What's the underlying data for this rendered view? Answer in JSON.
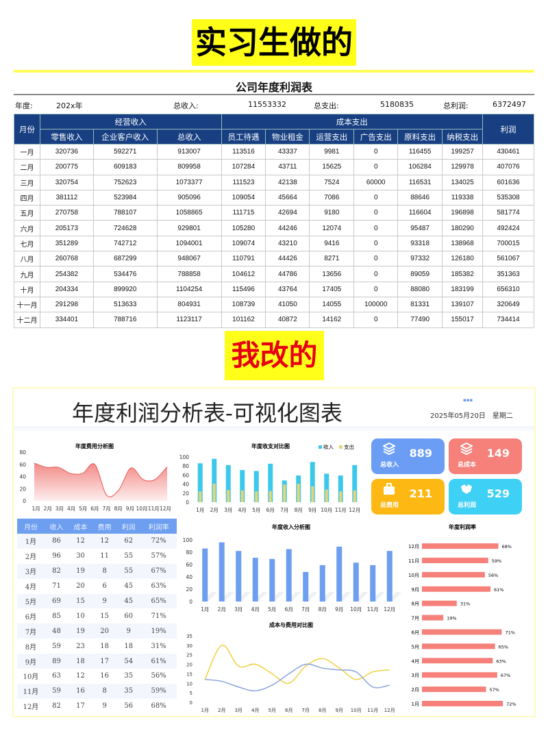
{
  "top_label": "实习生做的",
  "bottom_label": "我改的",
  "original": {
    "title": "公司年度利润表",
    "summary": {
      "year_label": "年度:",
      "year": "202x年",
      "income_label": "总收入:",
      "income": "11553332",
      "expense_label": "总支出:",
      "expense": "5180835",
      "profit_label": "总利润:",
      "profit": "6372497"
    },
    "group_headers": {
      "month": "月份",
      "operating": "经营收入",
      "cost": "成本支出",
      "profit": "利润"
    },
    "columns": [
      "零售收入",
      "企业客户收入",
      "总收入",
      "员工待遇",
      "物业租金",
      "运营支出",
      "广告支出",
      "原料支出",
      "纳税支出"
    ],
    "rows": [
      [
        "一月",
        "320736",
        "592271",
        "913007",
        "113516",
        "43337",
        "9981",
        "0",
        "116455",
        "199257",
        "430461"
      ],
      [
        "二月",
        "200775",
        "609183",
        "809958",
        "107284",
        "43711",
        "15625",
        "0",
        "106284",
        "129978",
        "407076"
      ],
      [
        "三月",
        "320754",
        "752623",
        "1073377",
        "111523",
        "42138",
        "7524",
        "60000",
        "116531",
        "134025",
        "601636"
      ],
      [
        "四月",
        "381112",
        "523984",
        "905096",
        "109054",
        "45664",
        "7086",
        "0",
        "88646",
        "119338",
        "535308"
      ],
      [
        "五月",
        "270758",
        "788107",
        "1058865",
        "111715",
        "42694",
        "9180",
        "0",
        "116604",
        "196898",
        "581774"
      ],
      [
        "六月",
        "205173",
        "724628",
        "929801",
        "105280",
        "44246",
        "12074",
        "0",
        "95487",
        "180290",
        "492424"
      ],
      [
        "七月",
        "351289",
        "742712",
        "1094001",
        "109074",
        "43210",
        "9416",
        "0",
        "93318",
        "138968",
        "700015"
      ],
      [
        "八月",
        "260768",
        "687299",
        "948067",
        "110791",
        "44426",
        "8271",
        "0",
        "97332",
        "126180",
        "561067"
      ],
      [
        "九月",
        "254382",
        "534476",
        "788858",
        "104612",
        "44786",
        "13656",
        "0",
        "89059",
        "185382",
        "351363"
      ],
      [
        "十月",
        "204334",
        "899920",
        "1104254",
        "115496",
        "43764",
        "17405",
        "0",
        "88080",
        "183199",
        "656310"
      ],
      [
        "十一月",
        "291298",
        "513633",
        "804931",
        "108739",
        "41050",
        "14055",
        "100000",
        "81331",
        "139107",
        "320649"
      ],
      [
        "十二月",
        "334401",
        "788716",
        "1123117",
        "101162",
        "40872",
        "14162",
        "0",
        "77490",
        "155017",
        "734414"
      ]
    ]
  },
  "dashboard": {
    "title": "年度利润分析表-可视化图表",
    "dots": "▪▪▪",
    "date": "2025年05月20日　星期二",
    "cards": [
      {
        "label": "总收入",
        "value": "889",
        "color": "#6b9df5",
        "icon": "stack-icon"
      },
      {
        "label": "总成本",
        "value": "149",
        "color": "#f6807a",
        "icon": "stack-icon"
      },
      {
        "label": "总费用",
        "value": "211",
        "color": "#fdb813",
        "icon": "briefcase-icon"
      },
      {
        "label": "总利润",
        "value": "529",
        "color": "#3fd0f5",
        "icon": "handshake-icon"
      }
    ],
    "table": {
      "headers": [
        "月份",
        "收入",
        "成本",
        "费用",
        "利润",
        "利润率"
      ],
      "rows": [
        [
          "1月",
          "86",
          "12",
          "12",
          "62",
          "72%"
        ],
        [
          "2月",
          "96",
          "30",
          "11",
          "55",
          "57%"
        ],
        [
          "3月",
          "82",
          "19",
          "8",
          "55",
          "67%"
        ],
        [
          "4月",
          "71",
          "20",
          "6",
          "45",
          "63%"
        ],
        [
          "5月",
          "69",
          "15",
          "9",
          "45",
          "65%"
        ],
        [
          "6月",
          "85",
          "10",
          "15",
          "60",
          "71%"
        ],
        [
          "7月",
          "48",
          "19",
          "20",
          "9",
          "19%"
        ],
        [
          "8月",
          "59",
          "23",
          "18",
          "18",
          "31%"
        ],
        [
          "9月",
          "89",
          "18",
          "17",
          "54",
          "61%"
        ],
        [
          "10月",
          "63",
          "12",
          "16",
          "35",
          "56%"
        ],
        [
          "11月",
          "59",
          "16",
          "8",
          "35",
          "59%"
        ],
        [
          "12月",
          "82",
          "17",
          "9",
          "56",
          "68%"
        ]
      ]
    }
  },
  "chart_data": [
    {
      "id": "area",
      "type": "area",
      "title": "年度费用分析图",
      "categories": [
        "1月",
        "2月",
        "3月",
        "4月",
        "5月",
        "6月",
        "7月",
        "8月",
        "9月",
        "10月",
        "11月",
        "12月"
      ],
      "values": [
        62,
        55,
        55,
        45,
        45,
        60,
        9,
        18,
        54,
        35,
        35,
        56
      ],
      "ylim": [
        0,
        80
      ],
      "yticks": [
        0,
        20,
        40,
        60,
        80
      ],
      "color": "#f28a86"
    },
    {
      "id": "stack",
      "type": "bar",
      "title": "年度收支对比图",
      "categories": [
        "1月",
        "2月",
        "3月",
        "4月",
        "5月",
        "6月",
        "7月",
        "8月",
        "9月",
        "10月",
        "11月",
        "12月"
      ],
      "series": [
        {
          "name": "收入",
          "values": [
            86,
            96,
            82,
            71,
            69,
            85,
            48,
            59,
            89,
            63,
            59,
            82
          ],
          "color": "#3cc8ec"
        },
        {
          "name": "支出",
          "values": [
            24,
            41,
            27,
            26,
            24,
            25,
            39,
            41,
            35,
            28,
            24,
            26
          ],
          "color": "#e8d573"
        }
      ],
      "ylim": [
        0,
        100
      ],
      "yticks": [
        0,
        20,
        40,
        60,
        80,
        100
      ],
      "legend": "top-right"
    },
    {
      "id": "income",
      "type": "bar",
      "title": "年度收入分析图",
      "categories": [
        "1月",
        "2月",
        "3月",
        "4月",
        "5月",
        "6月",
        "7月",
        "8月",
        "9月",
        "10月",
        "11月",
        "12月"
      ],
      "values": [
        86,
        96,
        82,
        71,
        69,
        85,
        48,
        59,
        89,
        63,
        59,
        82
      ],
      "ylim": [
        0,
        100
      ],
      "yticks": [
        0,
        20,
        40,
        60,
        80,
        100
      ],
      "color": "#6d9ef0"
    },
    {
      "id": "line",
      "type": "line",
      "title": "成本与费用对比图",
      "categories": [
        "1月",
        "2月",
        "3月",
        "4月",
        "5月",
        "6月",
        "7月",
        "8月",
        "9月",
        "10月",
        "11月",
        "12月"
      ],
      "series": [
        {
          "values": [
            12,
            30,
            19,
            20,
            15,
            10,
            19,
            23,
            18,
            12,
            16,
            17
          ],
          "color": "#f0d24a"
        },
        {
          "values": [
            12,
            11,
            8,
            6,
            9,
            15,
            20,
            18,
            17,
            16,
            8,
            9
          ],
          "color": "#8fa8dc"
        }
      ],
      "ylim": [
        0,
        35
      ],
      "yticks": [
        0,
        5,
        10,
        15,
        20,
        25,
        30,
        35
      ]
    },
    {
      "id": "hbar",
      "type": "bar",
      "orientation": "horizontal",
      "title": "年度利润率",
      "categories": [
        "1月",
        "2月",
        "3月",
        "4月",
        "5月",
        "6月",
        "7月",
        "8月",
        "9月",
        "10月",
        "11月",
        "12月"
      ],
      "values": [
        72,
        57,
        67,
        63,
        65,
        71,
        19,
        31,
        61,
        56,
        59,
        68
      ],
      "labels": [
        "72%",
        "57%",
        "67%",
        "63%",
        "65%",
        "71%",
        "19%",
        "31%",
        "61%",
        "56%",
        "59%",
        "68%"
      ],
      "color": "#f6807a"
    }
  ]
}
